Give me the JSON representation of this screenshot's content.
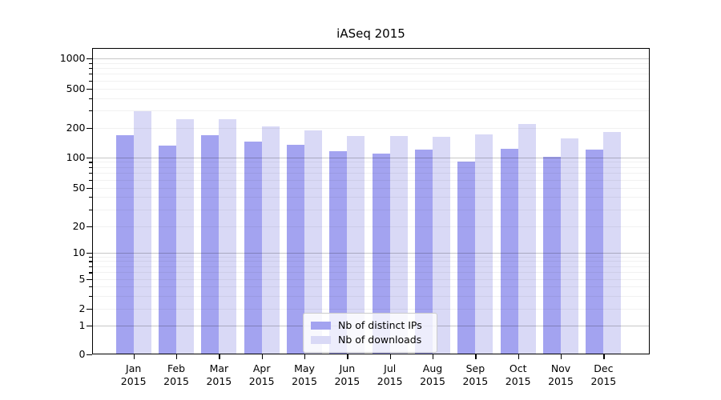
{
  "chart_data": {
    "type": "bar",
    "title": "iASeq 2015",
    "year": "2015",
    "categories": [
      "Jan",
      "Feb",
      "Mar",
      "Apr",
      "May",
      "Jun",
      "Jul",
      "Aug",
      "Sep",
      "Oct",
      "Nov",
      "Dec"
    ],
    "series": [
      {
        "name": "Nb of distinct IPs",
        "color": "#a3a3f0",
        "values": [
          167,
          131,
          168,
          145,
          135,
          116,
          110,
          121,
          91,
          122,
          101,
          120
        ]
      },
      {
        "name": "Nb of downloads",
        "color": "#d9d9f6",
        "values": [
          295,
          243,
          246,
          205,
          187,
          165,
          164,
          163,
          170,
          220,
          155,
          182
        ]
      }
    ],
    "yscale": "symlog",
    "yticks": [
      0,
      1,
      2,
      5,
      10,
      20,
      50,
      100,
      200,
      500,
      1000
    ],
    "ylim": [
      0,
      1260
    ],
    "grid": "on",
    "legend_position": "lower-center-inside",
    "colors": {
      "bar_dark": "#a3a3f0",
      "bar_light": "#d9d9f6",
      "grid_minor": "#efefef",
      "grid_major": "#c8c8c8",
      "axis": "#000000",
      "legend_border": "#cccccc"
    }
  }
}
